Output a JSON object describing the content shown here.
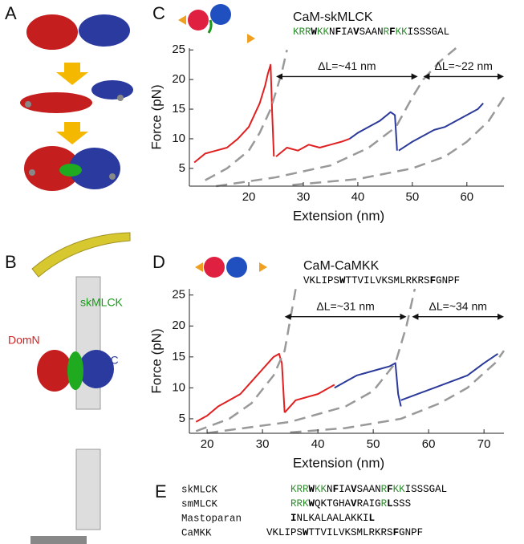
{
  "panel_letters": [
    "A",
    "B",
    "C",
    "D",
    "E"
  ],
  "structure_labels": [
    {
      "text": "DomN",
      "color": "#d42020"
    },
    {
      "text": "skMLCK",
      "color": "#1a9a1a"
    },
    {
      "text": "DomC",
      "color": "#2a3a9e"
    }
  ],
  "chart_headers": [
    {
      "title": "CaM-skMLCK",
      "sequence": [
        {
          "text": "KRR",
          "color": "#2e8b2e",
          "bold": false
        },
        {
          "text": "W",
          "color": "#000",
          "bold": true
        },
        {
          "text": "KK",
          "color": "#2e8b2e",
          "bold": false
        },
        {
          "text": "N",
          "color": "#000",
          "bold": false
        },
        {
          "text": "F",
          "color": "#000",
          "bold": true
        },
        {
          "text": "IA",
          "color": "#000",
          "bold": false
        },
        {
          "text": "V",
          "color": "#000",
          "bold": true
        },
        {
          "text": "SAAN",
          "color": "#000",
          "bold": false
        },
        {
          "text": "R",
          "color": "#2e8b2e",
          "bold": false
        },
        {
          "text": "F",
          "color": "#000",
          "bold": true
        },
        {
          "text": "KK",
          "color": "#2e8b2e",
          "bold": false
        },
        {
          "text": "ISSSGAL",
          "color": "#000",
          "bold": false
        }
      ]
    },
    {
      "title": "CaM-CaMKK",
      "sequence": [
        {
          "text": "VKLIPS",
          "color": "#000",
          "bold": false
        },
        {
          "text": "W",
          "color": "#000",
          "bold": true
        },
        {
          "text": "TTVILVKSMLRKRS",
          "color": "#000",
          "bold": false
        },
        {
          "text": "F",
          "color": "#000",
          "bold": true
        },
        {
          "text": "GNPF",
          "color": "#000",
          "bold": false
        }
      ]
    }
  ],
  "chart_data": [
    {
      "type": "line",
      "xlabel": "Extension (nm)",
      "ylabel": "Force (pN)",
      "xlim": [
        9.1,
        66.8
      ],
      "ylim": [
        2,
        25.3
      ],
      "xticks": [
        20,
        30,
        40,
        50,
        60
      ],
      "yticks": [
        5,
        10,
        15,
        20,
        25
      ],
      "series": [
        {
          "color": "#e02020",
          "dash": false,
          "x": [
            10,
            12,
            14,
            16,
            18,
            20,
            21,
            22,
            23,
            23.5,
            24,
            24.3,
            24.6
          ],
          "values": [
            6,
            7.5,
            8,
            8.5,
            10,
            12,
            14,
            16,
            19,
            21,
            22.5,
            14,
            7
          ]
        },
        {
          "color": "#e02020",
          "dash": false,
          "x": [
            25,
            27,
            29,
            31,
            33,
            35,
            37,
            38.5
          ],
          "values": [
            7,
            8.5,
            8,
            9,
            8.5,
            9,
            9.5,
            10
          ]
        },
        {
          "color": "#2b3a9a",
          "dash": false,
          "x": [
            38.5,
            40,
            42,
            44,
            46,
            46.8,
            47.2
          ],
          "values": [
            10,
            11,
            12,
            13,
            14.5,
            14,
            8
          ]
        },
        {
          "color": "#2b3a9a",
          "dash": false,
          "x": [
            47.5,
            50,
            52,
            54,
            56,
            58,
            60,
            62,
            63
          ],
          "values": [
            8,
            9.5,
            10.5,
            11.5,
            12,
            13,
            14,
            15,
            16
          ]
        },
        {
          "color": "#999999",
          "dash": true,
          "x": [
            12,
            16,
            20,
            22,
            24,
            26,
            27
          ],
          "values": [
            3,
            5,
            8,
            11,
            15,
            21,
            25
          ]
        },
        {
          "color": "#999999",
          "dash": true,
          "x": [
            14,
            25,
            35,
            42,
            47,
            50,
            52,
            55,
            58
          ],
          "values": [
            2,
            3.5,
            5.5,
            8.5,
            12,
            17,
            20,
            23,
            25.3
          ]
        },
        {
          "color": "#999999",
          "dash": true,
          "x": [
            28,
            40,
            50,
            56,
            60,
            64,
            66.8
          ],
          "values": [
            2.2,
            3.2,
            5,
            7,
            9.5,
            13,
            17
          ]
        }
      ],
      "annotations": [
        {
          "text": "ΔL=~41 nm",
          "x": [
            25,
            51
          ],
          "y": 20.5
        },
        {
          "text": "ΔL=~22 nm",
          "x": [
            52,
            66.8
          ],
          "y": 20.5
        }
      ]
    },
    {
      "type": "line",
      "xlabel": "Extension (nm)",
      "ylabel": "Force (pN)",
      "xlim": [
        16.8,
        73.6
      ],
      "ylim": [
        2.66,
        26
      ],
      "xticks": [
        20,
        30,
        40,
        50,
        60,
        70
      ],
      "yticks": [
        5,
        10,
        15,
        20,
        25
      ],
      "series": [
        {
          "color": "#e02020",
          "dash": false,
          "x": [
            18,
            20,
            22,
            24,
            26,
            28,
            30,
            31,
            32,
            33,
            33.5,
            34
          ],
          "values": [
            4.5,
            5.5,
            7,
            8,
            9,
            11,
            13,
            14,
            15,
            15.5,
            14,
            6
          ]
        },
        {
          "color": "#e02020",
          "dash": false,
          "x": [
            34,
            36,
            38,
            40,
            42,
            43
          ],
          "values": [
            6,
            8,
            8.5,
            9,
            10,
            10.5
          ]
        },
        {
          "color": "#2b3a9a",
          "dash": false,
          "x": [
            43,
            45,
            47,
            49,
            51,
            53,
            54,
            54.5,
            55
          ],
          "values": [
            10,
            11,
            12,
            12.5,
            13,
            13.5,
            14,
            9,
            7
          ]
        },
        {
          "color": "#2b3a9a",
          "dash": false,
          "x": [
            55,
            58,
            61,
            64,
            67,
            70,
            72.5
          ],
          "values": [
            8,
            9,
            10,
            11,
            12,
            14,
            15.5
          ]
        },
        {
          "color": "#999999",
          "dash": true,
          "x": [
            18,
            24,
            28,
            32,
            34,
            36
          ],
          "values": [
            3,
            5,
            7.5,
            12,
            16,
            26
          ]
        },
        {
          "color": "#999999",
          "dash": true,
          "x": [
            20,
            35,
            45,
            50,
            54,
            56,
            57.5
          ],
          "values": [
            2.7,
            4.5,
            7,
            9.5,
            14,
            20,
            26
          ]
        },
        {
          "color": "#999999",
          "dash": true,
          "x": [
            35,
            45,
            55,
            62,
            67,
            72,
            73.6
          ],
          "values": [
            2.8,
            3.5,
            5,
            7.5,
            10,
            14,
            16
          ]
        }
      ],
      "annotations": [
        {
          "text": "ΔL=~31 nm",
          "x": [
            34,
            56
          ],
          "y": 21.5
        },
        {
          "text": "ΔL=~34 nm",
          "x": [
            57,
            73.6
          ],
          "y": 21.5
        }
      ]
    }
  ],
  "sequence_table": [
    {
      "name": "skMLCK",
      "sequence": [
        {
          "text": "KRR",
          "color": "#2e8b2e",
          "bold": false
        },
        {
          "text": "W",
          "color": "#000",
          "bold": true
        },
        {
          "text": "KK",
          "color": "#2e8b2e",
          "bold": false
        },
        {
          "text": "N",
          "color": "#000",
          "bold": false
        },
        {
          "text": "F",
          "color": "#000",
          "bold": true
        },
        {
          "text": "IA",
          "color": "#000",
          "bold": false
        },
        {
          "text": "V",
          "color": "#000",
          "bold": true
        },
        {
          "text": "SAAN",
          "color": "#000",
          "bold": false
        },
        {
          "text": "R",
          "color": "#2e8b2e",
          "bold": false
        },
        {
          "text": "F",
          "color": "#000",
          "bold": true
        },
        {
          "text": "KK",
          "color": "#2e8b2e",
          "bold": false
        },
        {
          "text": "ISSSGAL",
          "color": "#000",
          "bold": false
        }
      ]
    },
    {
      "name": "smMLCK",
      "sequence": [
        {
          "text": "RRK",
          "color": "#2e8b2e",
          "bold": false
        },
        {
          "text": "W",
          "color": "#000",
          "bold": true
        },
        {
          "text": "QKTGHA",
          "color": "#000",
          "bold": false
        },
        {
          "text": "V",
          "color": "#000",
          "bold": true
        },
        {
          "text": "RAIG",
          "color": "#000",
          "bold": false
        },
        {
          "text": "R",
          "color": "#2e8b2e",
          "bold": false
        },
        {
          "text": "L",
          "color": "#000",
          "bold": true
        },
        {
          "text": "SSS",
          "color": "#000",
          "bold": false
        }
      ]
    },
    {
      "name": "Mastoparan",
      "sequence": [
        {
          "text": "I",
          "color": "#000",
          "bold": true
        },
        {
          "text": "NLKALAALAKKI",
          "color": "#000",
          "bold": false
        },
        {
          "text": "L",
          "color": "#000",
          "bold": true
        }
      ]
    },
    {
      "name": "CaMKK",
      "sequence": [
        {
          "text": "VKLIPS",
          "color": "#000",
          "bold": false
        },
        {
          "text": "W",
          "color": "#000",
          "bold": true
        },
        {
          "text": "TTVILVKSMLRKRS",
          "color": "#000",
          "bold": false
        },
        {
          "text": "F",
          "color": "#000",
          "bold": true
        },
        {
          "text": "GNPF",
          "color": "#000",
          "bold": false
        }
      ]
    }
  ]
}
